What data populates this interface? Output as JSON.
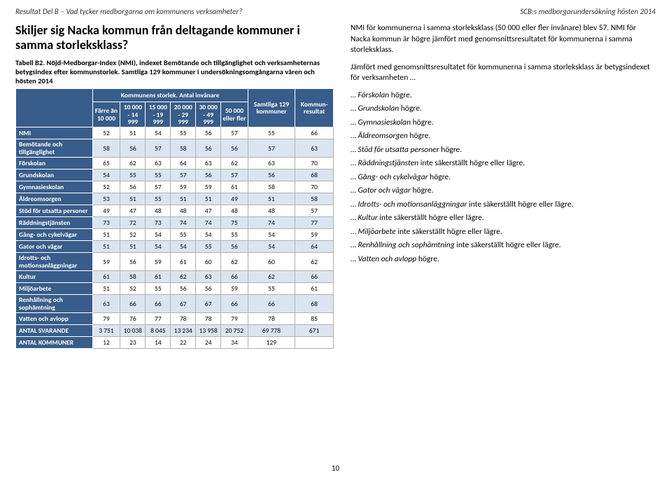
{
  "header": {
    "left": "Resultat Del B – Vad tycker medborgarna om kommunens verksamheter?",
    "right": "SCB:s medborgarundersökning hösten 2014"
  },
  "title": "Skiljer sig Nacka kommun från deltagande kommuner i samma storleksklass?",
  "caption": "Tabell B2. Nöjd-Medborgar-Index (NMI), indexet Bemötande och tillgänglighet och verksamheternas betygsindex efter kommunstorlek. Samtliga 129 kommuner i undersökningsomgångarna våren och hösten 2014",
  "table": {
    "super_header": "Kommunens storlek. Antal invånare",
    "col_headers": [
      "Färre än 10 000",
      "10 000 - 14 999",
      "15 000 - 19 999",
      "20 000 - 29 999",
      "30 000 - 49 999",
      "50 000 eller fler",
      "Samtliga 129 kommuner",
      "Kommun-resultat"
    ],
    "rows": [
      {
        "label": "NMI",
        "vals": [
          "52",
          "51",
          "54",
          "55",
          "56",
          "57",
          "55",
          "66"
        ]
      },
      {
        "label": "Bemötande och tillgänglighet",
        "vals": [
          "58",
          "56",
          "57",
          "58",
          "56",
          "56",
          "57",
          "63"
        ]
      },
      {
        "label": "Förskolan",
        "vals": [
          "65",
          "62",
          "63",
          "64",
          "63",
          "62",
          "63",
          "70"
        ]
      },
      {
        "label": "Grundskolan",
        "vals": [
          "54",
          "55",
          "55",
          "57",
          "56",
          "57",
          "56",
          "68"
        ]
      },
      {
        "label": "Gymnasieskolan",
        "vals": [
          "52",
          "56",
          "57",
          "59",
          "59",
          "61",
          "58",
          "70"
        ]
      },
      {
        "label": "Äldreomsorgen",
        "vals": [
          "53",
          "51",
          "55",
          "51",
          "51",
          "49",
          "51",
          "58"
        ]
      },
      {
        "label": "Stöd för utsatta personer",
        "vals": [
          "49",
          "47",
          "48",
          "48",
          "47",
          "48",
          "48",
          "57"
        ]
      },
      {
        "label": "Räddningstjänsten",
        "vals": [
          "73",
          "72",
          "73",
          "74",
          "74",
          "75",
          "74",
          "77"
        ]
      },
      {
        "label": "Gång- och cykelvägar",
        "vals": [
          "51",
          "52",
          "54",
          "55",
          "54",
          "55",
          "54",
          "59"
        ]
      },
      {
        "label": "Gator och vägar",
        "vals": [
          "51",
          "51",
          "54",
          "54",
          "55",
          "56",
          "54",
          "64"
        ]
      },
      {
        "label": "Idrotts- och motionsanläggningar",
        "vals": [
          "59",
          "56",
          "59",
          "61",
          "60",
          "62",
          "60",
          "62"
        ]
      },
      {
        "label": "Kultur",
        "vals": [
          "61",
          "58",
          "61",
          "62",
          "63",
          "66",
          "62",
          "66"
        ]
      },
      {
        "label": "Miljöarbete",
        "vals": [
          "51",
          "52",
          "55",
          "56",
          "56",
          "59",
          "55",
          "61"
        ]
      },
      {
        "label": "Renhållning och sophämtning",
        "vals": [
          "63",
          "66",
          "66",
          "67",
          "67",
          "66",
          "66",
          "68"
        ]
      },
      {
        "label": "Vatten och avlopp",
        "vals": [
          "79",
          "76",
          "77",
          "78",
          "78",
          "79",
          "78",
          "85"
        ]
      },
      {
        "label": "ANTAL SVARANDE",
        "vals": [
          "3 751",
          "10 038",
          "8 045",
          "13 234",
          "13 958",
          "20 752",
          "69 778",
          "671"
        ]
      },
      {
        "label": "ANTAL KOMMUNER",
        "vals": [
          "12",
          "23",
          "14",
          "22",
          "24",
          "34",
          "129",
          ""
        ]
      }
    ]
  },
  "right": {
    "p1": "NMI för kommunerna i samma storleksklass (50 000 eller fler invånare) blev 57. NMI för Nacka kommun är högre jämfört med genomsnittsresultatet för kommunerna i samma storleksklass.",
    "p2": "Jämfört med genomsnittsresultatet för kommunerna i samma storleksklass är betygsindexet för verksamheten …",
    "items": [
      {
        "name": "Förskolan",
        "status": "högre."
      },
      {
        "name": "Grundskolan",
        "status": "högre."
      },
      {
        "name": "Gymnasieskolan",
        "status": "högre."
      },
      {
        "name": "Äldreomsorgen",
        "status": "högre."
      },
      {
        "name": "Stöd för utsatta personer",
        "status": "högre."
      },
      {
        "name": "Räddningstjänsten",
        "status": "inte säkerställt högre eller lägre."
      },
      {
        "name": "Gång- och cykelvägar",
        "status": "högre."
      },
      {
        "name": "Gator och vägar",
        "status": "högre."
      },
      {
        "name": "Idrotts- och motionsanläggningar",
        "status": "inte säkerställt högre eller lägre."
      },
      {
        "name": "Kultur",
        "status": "inte säkerställt högre eller lägre."
      },
      {
        "name": "Miljöarbete",
        "status": "inte säkerställt högre eller lägre."
      },
      {
        "name": "Renhållning och sophämtning",
        "status": "inte säkerställt högre eller lägre."
      },
      {
        "name": "Vatten och avlopp",
        "status": "högre."
      }
    ]
  },
  "page_num": "10",
  "style": {
    "header_bg": "#385d8a",
    "header_fg": "#ffffff",
    "band_bg": "#dbe5f1",
    "border_color": "#b0b0b0",
    "body_font_size": 11,
    "table_font_size": 9.5
  }
}
